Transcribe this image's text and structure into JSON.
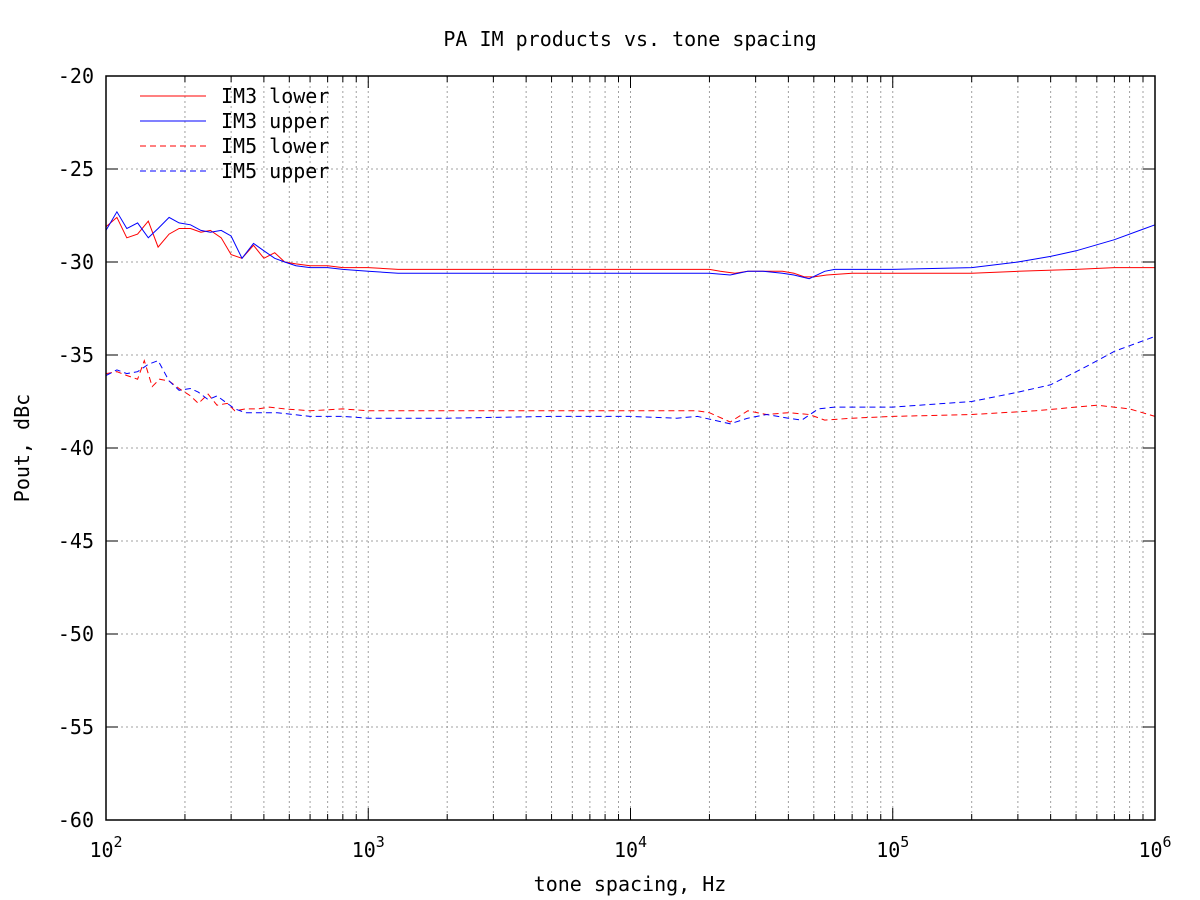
{
  "chart_data": {
    "type": "line",
    "title": "PA IM products vs. tone spacing",
    "xlabel": "tone spacing, Hz",
    "ylabel": "Pout, dBc",
    "x_scale": "log",
    "xlim": [
      100,
      1000000
    ],
    "ylim": [
      -60,
      -20
    ],
    "x_ticks": [
      {
        "value": 100,
        "base": "10",
        "exp": "2"
      },
      {
        "value": 1000,
        "base": "10",
        "exp": "3"
      },
      {
        "value": 10000,
        "base": "10",
        "exp": "4"
      },
      {
        "value": 100000,
        "base": "10",
        "exp": "5"
      },
      {
        "value": 1000000,
        "base": "10",
        "exp": "6"
      }
    ],
    "y_ticks": [
      "-20",
      "-25",
      "-30",
      "-35",
      "-40",
      "-45",
      "-50",
      "-55",
      "-60"
    ],
    "grid": true,
    "legend_position": "top-left",
    "series": [
      {
        "name": "IM3 lower",
        "color": "#ff0000",
        "dash": "solid",
        "points": [
          [
            100,
            -28.1
          ],
          [
            110,
            -27.6
          ],
          [
            120,
            -28.7
          ],
          [
            132,
            -28.5
          ],
          [
            145,
            -27.8
          ],
          [
            158,
            -29.2
          ],
          [
            174,
            -28.5
          ],
          [
            190,
            -28.2
          ],
          [
            210,
            -28.2
          ],
          [
            230,
            -28.4
          ],
          [
            250,
            -28.3
          ],
          [
            275,
            -28.7
          ],
          [
            300,
            -29.6
          ],
          [
            330,
            -29.8
          ],
          [
            365,
            -29.1
          ],
          [
            400,
            -29.8
          ],
          [
            440,
            -29.5
          ],
          [
            480,
            -30.0
          ],
          [
            530,
            -30.1
          ],
          [
            600,
            -30.2
          ],
          [
            700,
            -30.2
          ],
          [
            800,
            -30.3
          ],
          [
            1000,
            -30.3
          ],
          [
            1300,
            -30.4
          ],
          [
            2000,
            -30.4
          ],
          [
            3000,
            -30.4
          ],
          [
            5000,
            -30.4
          ],
          [
            8000,
            -30.4
          ],
          [
            12000,
            -30.4
          ],
          [
            20000,
            -30.4
          ],
          [
            22000,
            -30.5
          ],
          [
            25000,
            -30.6
          ],
          [
            28000,
            -30.5
          ],
          [
            32000,
            -30.5
          ],
          [
            38000,
            -30.5
          ],
          [
            42000,
            -30.6
          ],
          [
            46000,
            -30.8
          ],
          [
            50000,
            -30.8
          ],
          [
            56000,
            -30.7
          ],
          [
            70000,
            -30.6
          ],
          [
            100000,
            -30.6
          ],
          [
            200000,
            -30.6
          ],
          [
            300000,
            -30.5
          ],
          [
            500000,
            -30.4
          ],
          [
            700000,
            -30.3
          ],
          [
            1000000,
            -30.3
          ]
        ]
      },
      {
        "name": "IM3 upper",
        "color": "#0000ff",
        "dash": "solid",
        "points": [
          [
            100,
            -28.3
          ],
          [
            110,
            -27.3
          ],
          [
            120,
            -28.2
          ],
          [
            132,
            -27.9
          ],
          [
            145,
            -28.7
          ],
          [
            158,
            -28.2
          ],
          [
            174,
            -27.6
          ],
          [
            190,
            -27.9
          ],
          [
            210,
            -28.0
          ],
          [
            230,
            -28.3
          ],
          [
            250,
            -28.4
          ],
          [
            275,
            -28.3
          ],
          [
            300,
            -28.6
          ],
          [
            330,
            -29.8
          ],
          [
            365,
            -29.0
          ],
          [
            400,
            -29.4
          ],
          [
            440,
            -29.8
          ],
          [
            480,
            -30.0
          ],
          [
            530,
            -30.2
          ],
          [
            600,
            -30.3
          ],
          [
            700,
            -30.3
          ],
          [
            800,
            -30.4
          ],
          [
            1000,
            -30.5
          ],
          [
            1300,
            -30.6
          ],
          [
            2000,
            -30.6
          ],
          [
            3000,
            -30.6
          ],
          [
            5000,
            -30.6
          ],
          [
            8000,
            -30.6
          ],
          [
            12000,
            -30.6
          ],
          [
            20000,
            -30.6
          ],
          [
            24000,
            -30.7
          ],
          [
            28000,
            -30.5
          ],
          [
            32000,
            -30.5
          ],
          [
            38000,
            -30.6
          ],
          [
            42000,
            -30.7
          ],
          [
            48000,
            -30.9
          ],
          [
            55000,
            -30.5
          ],
          [
            60000,
            -30.4
          ],
          [
            100000,
            -30.4
          ],
          [
            200000,
            -30.3
          ],
          [
            300000,
            -30.0
          ],
          [
            400000,
            -29.7
          ],
          [
            500000,
            -29.4
          ],
          [
            700000,
            -28.8
          ],
          [
            1000000,
            -28.0
          ]
        ]
      },
      {
        "name": "IM5 lower",
        "color": "#ff0000",
        "dash": "dashed",
        "points": [
          [
            100,
            -36.0
          ],
          [
            110,
            -35.9
          ],
          [
            120,
            -36.1
          ],
          [
            132,
            -36.3
          ],
          [
            140,
            -35.3
          ],
          [
            150,
            -36.7
          ],
          [
            160,
            -36.3
          ],
          [
            174,
            -36.4
          ],
          [
            190,
            -36.8
          ],
          [
            210,
            -37.2
          ],
          [
            225,
            -37.6
          ],
          [
            245,
            -37.1
          ],
          [
            265,
            -37.7
          ],
          [
            290,
            -37.6
          ],
          [
            310,
            -38.0
          ],
          [
            340,
            -37.9
          ],
          [
            380,
            -37.9
          ],
          [
            420,
            -37.8
          ],
          [
            480,
            -37.9
          ],
          [
            600,
            -38.0
          ],
          [
            800,
            -37.9
          ],
          [
            1000,
            -38.0
          ],
          [
            2000,
            -38.0
          ],
          [
            5000,
            -38.0
          ],
          [
            10000,
            -38.0
          ],
          [
            18000,
            -38.0
          ],
          [
            20000,
            -38.1
          ],
          [
            24000,
            -38.6
          ],
          [
            28000,
            -38.0
          ],
          [
            33000,
            -38.2
          ],
          [
            40000,
            -38.1
          ],
          [
            48000,
            -38.2
          ],
          [
            55000,
            -38.5
          ],
          [
            70000,
            -38.4
          ],
          [
            100000,
            -38.3
          ],
          [
            200000,
            -38.2
          ],
          [
            350000,
            -38.0
          ],
          [
            600000,
            -37.7
          ],
          [
            800000,
            -37.9
          ],
          [
            1000000,
            -38.3
          ]
        ]
      },
      {
        "name": "IM5 upper",
        "color": "#0000ff",
        "dash": "dashed",
        "points": [
          [
            100,
            -36.1
          ],
          [
            110,
            -35.8
          ],
          [
            120,
            -36.0
          ],
          [
            132,
            -35.9
          ],
          [
            145,
            -35.5
          ],
          [
            158,
            -35.3
          ],
          [
            174,
            -36.4
          ],
          [
            190,
            -36.9
          ],
          [
            210,
            -36.8
          ],
          [
            225,
            -37.0
          ],
          [
            245,
            -37.4
          ],
          [
            265,
            -37.2
          ],
          [
            290,
            -37.6
          ],
          [
            310,
            -37.9
          ],
          [
            340,
            -38.1
          ],
          [
            380,
            -38.1
          ],
          [
            450,
            -38.1
          ],
          [
            600,
            -38.3
          ],
          [
            800,
            -38.3
          ],
          [
            1000,
            -38.4
          ],
          [
            2000,
            -38.4
          ],
          [
            5000,
            -38.3
          ],
          [
            10000,
            -38.3
          ],
          [
            15000,
            -38.4
          ],
          [
            18000,
            -38.3
          ],
          [
            24000,
            -38.7
          ],
          [
            28000,
            -38.4
          ],
          [
            33000,
            -38.2
          ],
          [
            40000,
            -38.4
          ],
          [
            45000,
            -38.5
          ],
          [
            52000,
            -37.9
          ],
          [
            60000,
            -37.8
          ],
          [
            100000,
            -37.8
          ],
          [
            200000,
            -37.5
          ],
          [
            300000,
            -37.0
          ],
          [
            400000,
            -36.6
          ],
          [
            550000,
            -35.6
          ],
          [
            700000,
            -34.8
          ],
          [
            1000000,
            -34.0
          ]
        ]
      }
    ]
  }
}
